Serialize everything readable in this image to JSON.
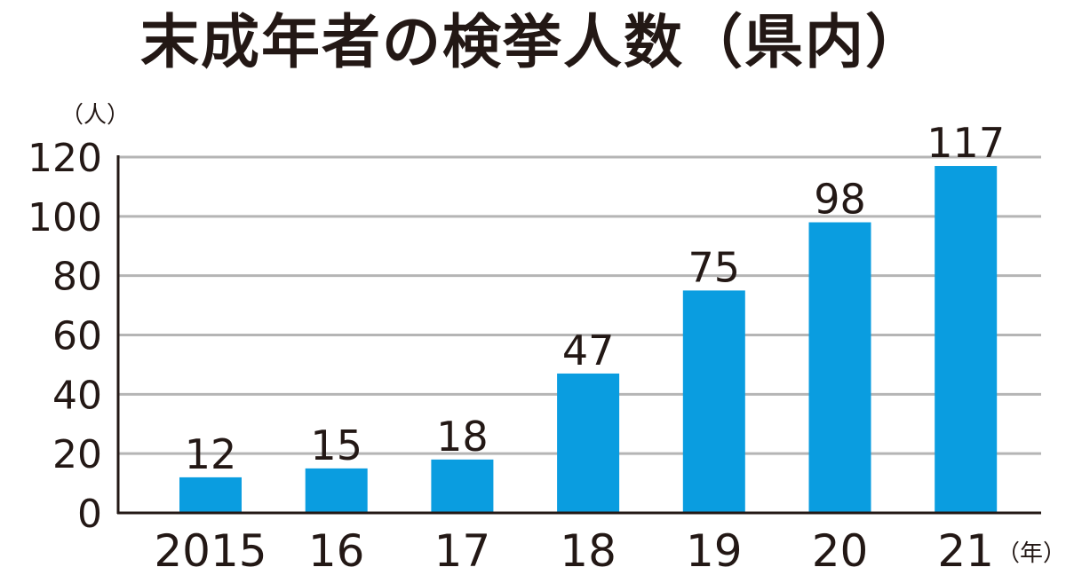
{
  "chart_data": {
    "type": "bar",
    "title": "末成年者の検挙人数（県内）",
    "ylabel": "（人）",
    "xlabel": "（年）",
    "categories": [
      "2015",
      "16",
      "17",
      "18",
      "19",
      "20",
      "21"
    ],
    "values": [
      12,
      15,
      18,
      47,
      75,
      98,
      117
    ],
    "ylim": [
      0,
      120
    ],
    "yticks": [
      0,
      20,
      40,
      60,
      80,
      100,
      120
    ],
    "grid": true,
    "bar_color": "#0a9de0",
    "grid_color": "#b5b5b5",
    "axis_color": "#231815"
  }
}
